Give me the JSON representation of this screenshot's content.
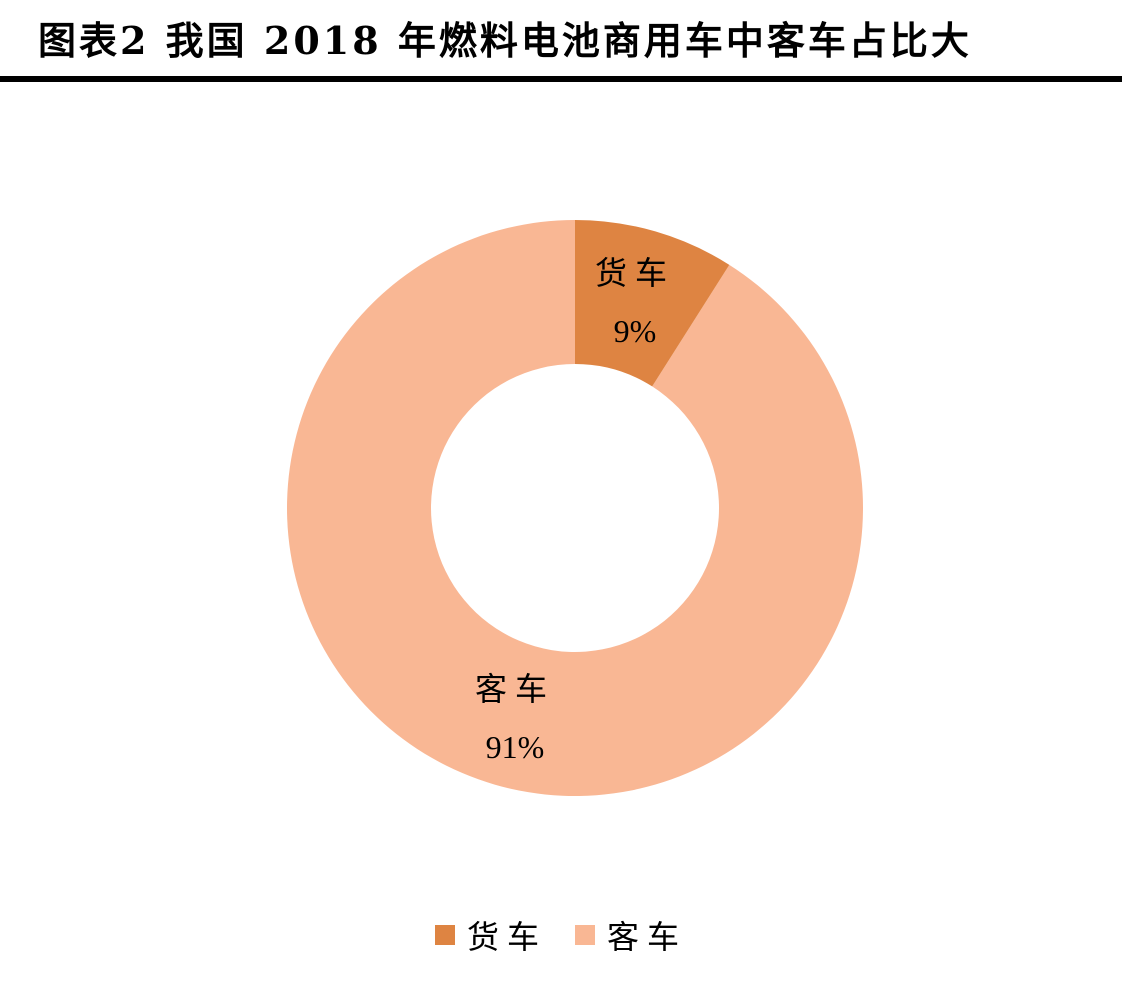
{
  "title": "图表2 我国 2018 年燃料电池商用车中客车占比大",
  "colors": {
    "truck": "#DE8442",
    "bus": "#F9B794",
    "rule": "#000000"
  },
  "labels": {
    "truck": {
      "name": "货车",
      "value": "9%"
    },
    "bus": {
      "name": "客车",
      "value": "91%"
    }
  },
  "legend": [
    {
      "label": "货车",
      "color": "#DE8442"
    },
    {
      "label": "客车",
      "color": "#F9B794"
    }
  ],
  "chart_data": {
    "type": "pie",
    "variant": "donut",
    "title": "图表2 我国 2018 年燃料电池商用车中客车占比大",
    "categories": [
      "货车",
      "客车"
    ],
    "values": [
      9,
      91
    ],
    "unit": "%",
    "data_labels": [
      "货车 9%",
      "客车 91%"
    ],
    "colors": [
      "#DE8442",
      "#F9B794"
    ],
    "start_angle": "12 o'clock, clockwise",
    "legend_position": "bottom"
  }
}
